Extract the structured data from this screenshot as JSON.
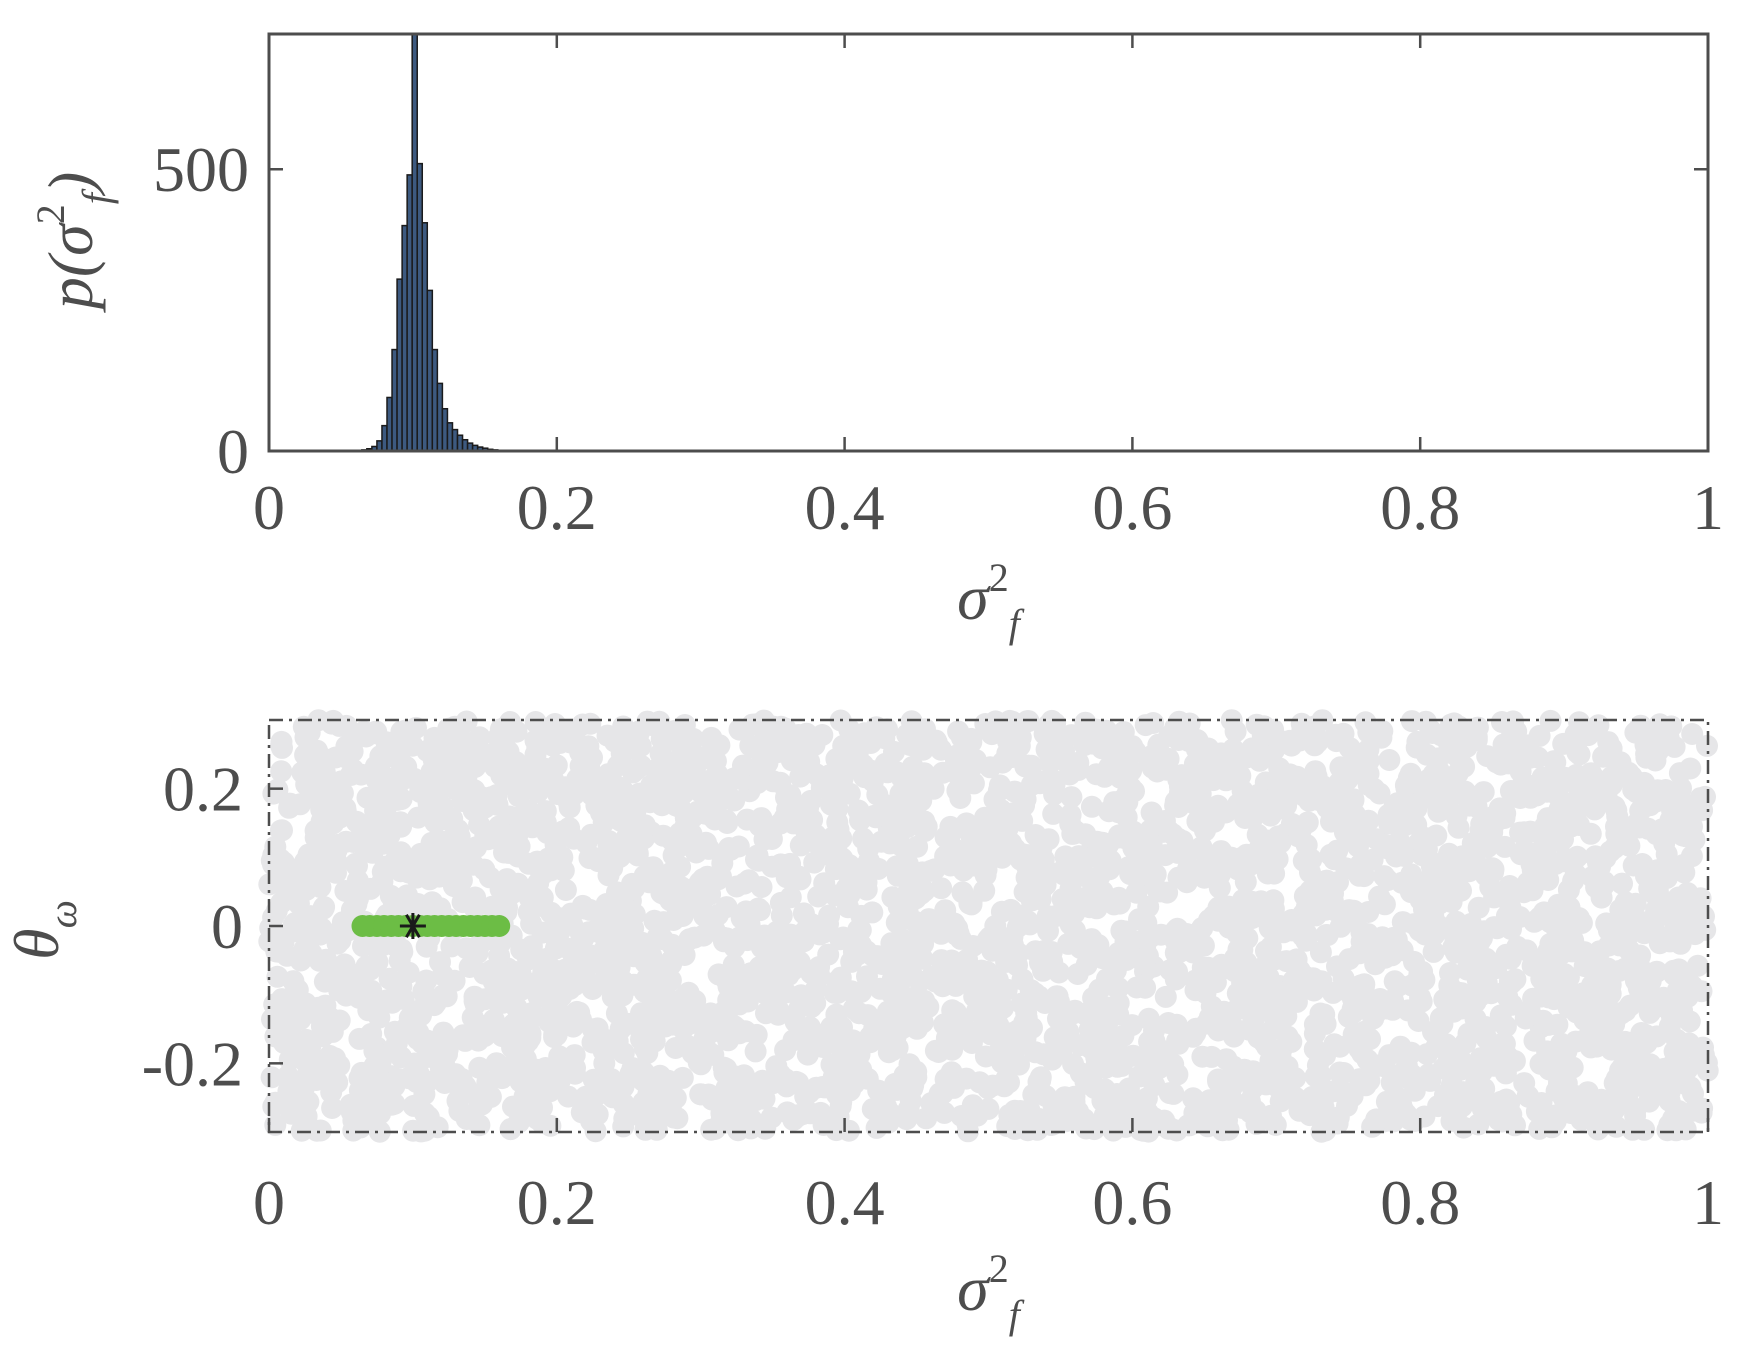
{
  "chart_data": [
    {
      "type": "bar",
      "subtype": "histogram",
      "xlabel": {
        "base": "σ",
        "sup": "2",
        "sub": "f"
      },
      "ylabel": {
        "prefix": "p(",
        "base": "σ",
        "sup": "2",
        "sub": "f",
        "suffix": ")"
      },
      "xlim": [
        0,
        1
      ],
      "ylim": [
        0,
        740
      ],
      "xticks": [
        0,
        0.2,
        0.4,
        0.6,
        0.8,
        1
      ],
      "xtick_labels": [
        "0",
        "0.2",
        "0.4",
        "0.6",
        "0.8",
        "1"
      ],
      "yticks": [
        0,
        500
      ],
      "ytick_labels": [
        "0",
        "500"
      ],
      "bar_color": "#3d5a80",
      "bar_edge_color": "#1a1a1a",
      "bin_width": 0.0035,
      "bins": [
        {
          "x": 0.0645,
          "y": 2
        },
        {
          "x": 0.068,
          "y": 4
        },
        {
          "x": 0.0715,
          "y": 8
        },
        {
          "x": 0.075,
          "y": 18
        },
        {
          "x": 0.0785,
          "y": 45
        },
        {
          "x": 0.082,
          "y": 95
        },
        {
          "x": 0.0855,
          "y": 180
        },
        {
          "x": 0.089,
          "y": 305
        },
        {
          "x": 0.0925,
          "y": 400
        },
        {
          "x": 0.096,
          "y": 490
        },
        {
          "x": 0.0995,
          "y": 745
        },
        {
          "x": 0.103,
          "y": 510
        },
        {
          "x": 0.1065,
          "y": 405
        },
        {
          "x": 0.11,
          "y": 285
        },
        {
          "x": 0.1135,
          "y": 180
        },
        {
          "x": 0.117,
          "y": 120
        },
        {
          "x": 0.1205,
          "y": 75
        },
        {
          "x": 0.124,
          "y": 50
        },
        {
          "x": 0.1275,
          "y": 38
        },
        {
          "x": 0.131,
          "y": 28
        },
        {
          "x": 0.1345,
          "y": 20
        },
        {
          "x": 0.138,
          "y": 14
        },
        {
          "x": 0.1415,
          "y": 10
        },
        {
          "x": 0.145,
          "y": 7
        },
        {
          "x": 0.1485,
          "y": 5
        },
        {
          "x": 0.152,
          "y": 3
        },
        {
          "x": 0.1555,
          "y": 2
        },
        {
          "x": 0.159,
          "y": 1
        }
      ]
    },
    {
      "type": "scatter",
      "xlabel": {
        "base": "σ",
        "sup": "2",
        "sub": "f"
      },
      "ylabel": {
        "base": "θ",
        "sub": "ω"
      },
      "xlim": [
        0,
        1
      ],
      "ylim": [
        -0.3,
        0.3
      ],
      "xticks": [
        0,
        0.2,
        0.4,
        0.6,
        0.8,
        1
      ],
      "xtick_labels": [
        "0",
        "0.2",
        "0.4",
        "0.6",
        "0.8",
        "1"
      ],
      "yticks": [
        -0.2,
        0,
        0.2
      ],
      "ytick_labels": [
        "-0.2",
        "0",
        "0.2"
      ],
      "series": [
        {
          "role": "prior samples",
          "color": "#e6e6e8",
          "distribution": "uniform",
          "x_range": [
            0,
            1
          ],
          "y_range": [
            -0.3,
            0.3
          ],
          "count": 3500
        },
        {
          "role": "posterior samples",
          "color": "#6cbd45",
          "x": [
            0.065,
            0.07,
            0.075,
            0.08,
            0.085,
            0.09,
            0.095,
            0.1,
            0.105,
            0.11,
            0.115,
            0.12,
            0.125,
            0.13,
            0.135,
            0.14,
            0.145,
            0.15,
            0.155,
            0.16
          ],
          "y": [
            0,
            0,
            0,
            0,
            0,
            0,
            0,
            0,
            0,
            0,
            0,
            0,
            0,
            0,
            0,
            0,
            0,
            0,
            0,
            0
          ]
        },
        {
          "role": "true value",
          "marker": "asterisk",
          "color": "#1a1a1a",
          "x": [
            0.1
          ],
          "y": [
            0
          ]
        }
      ]
    }
  ]
}
